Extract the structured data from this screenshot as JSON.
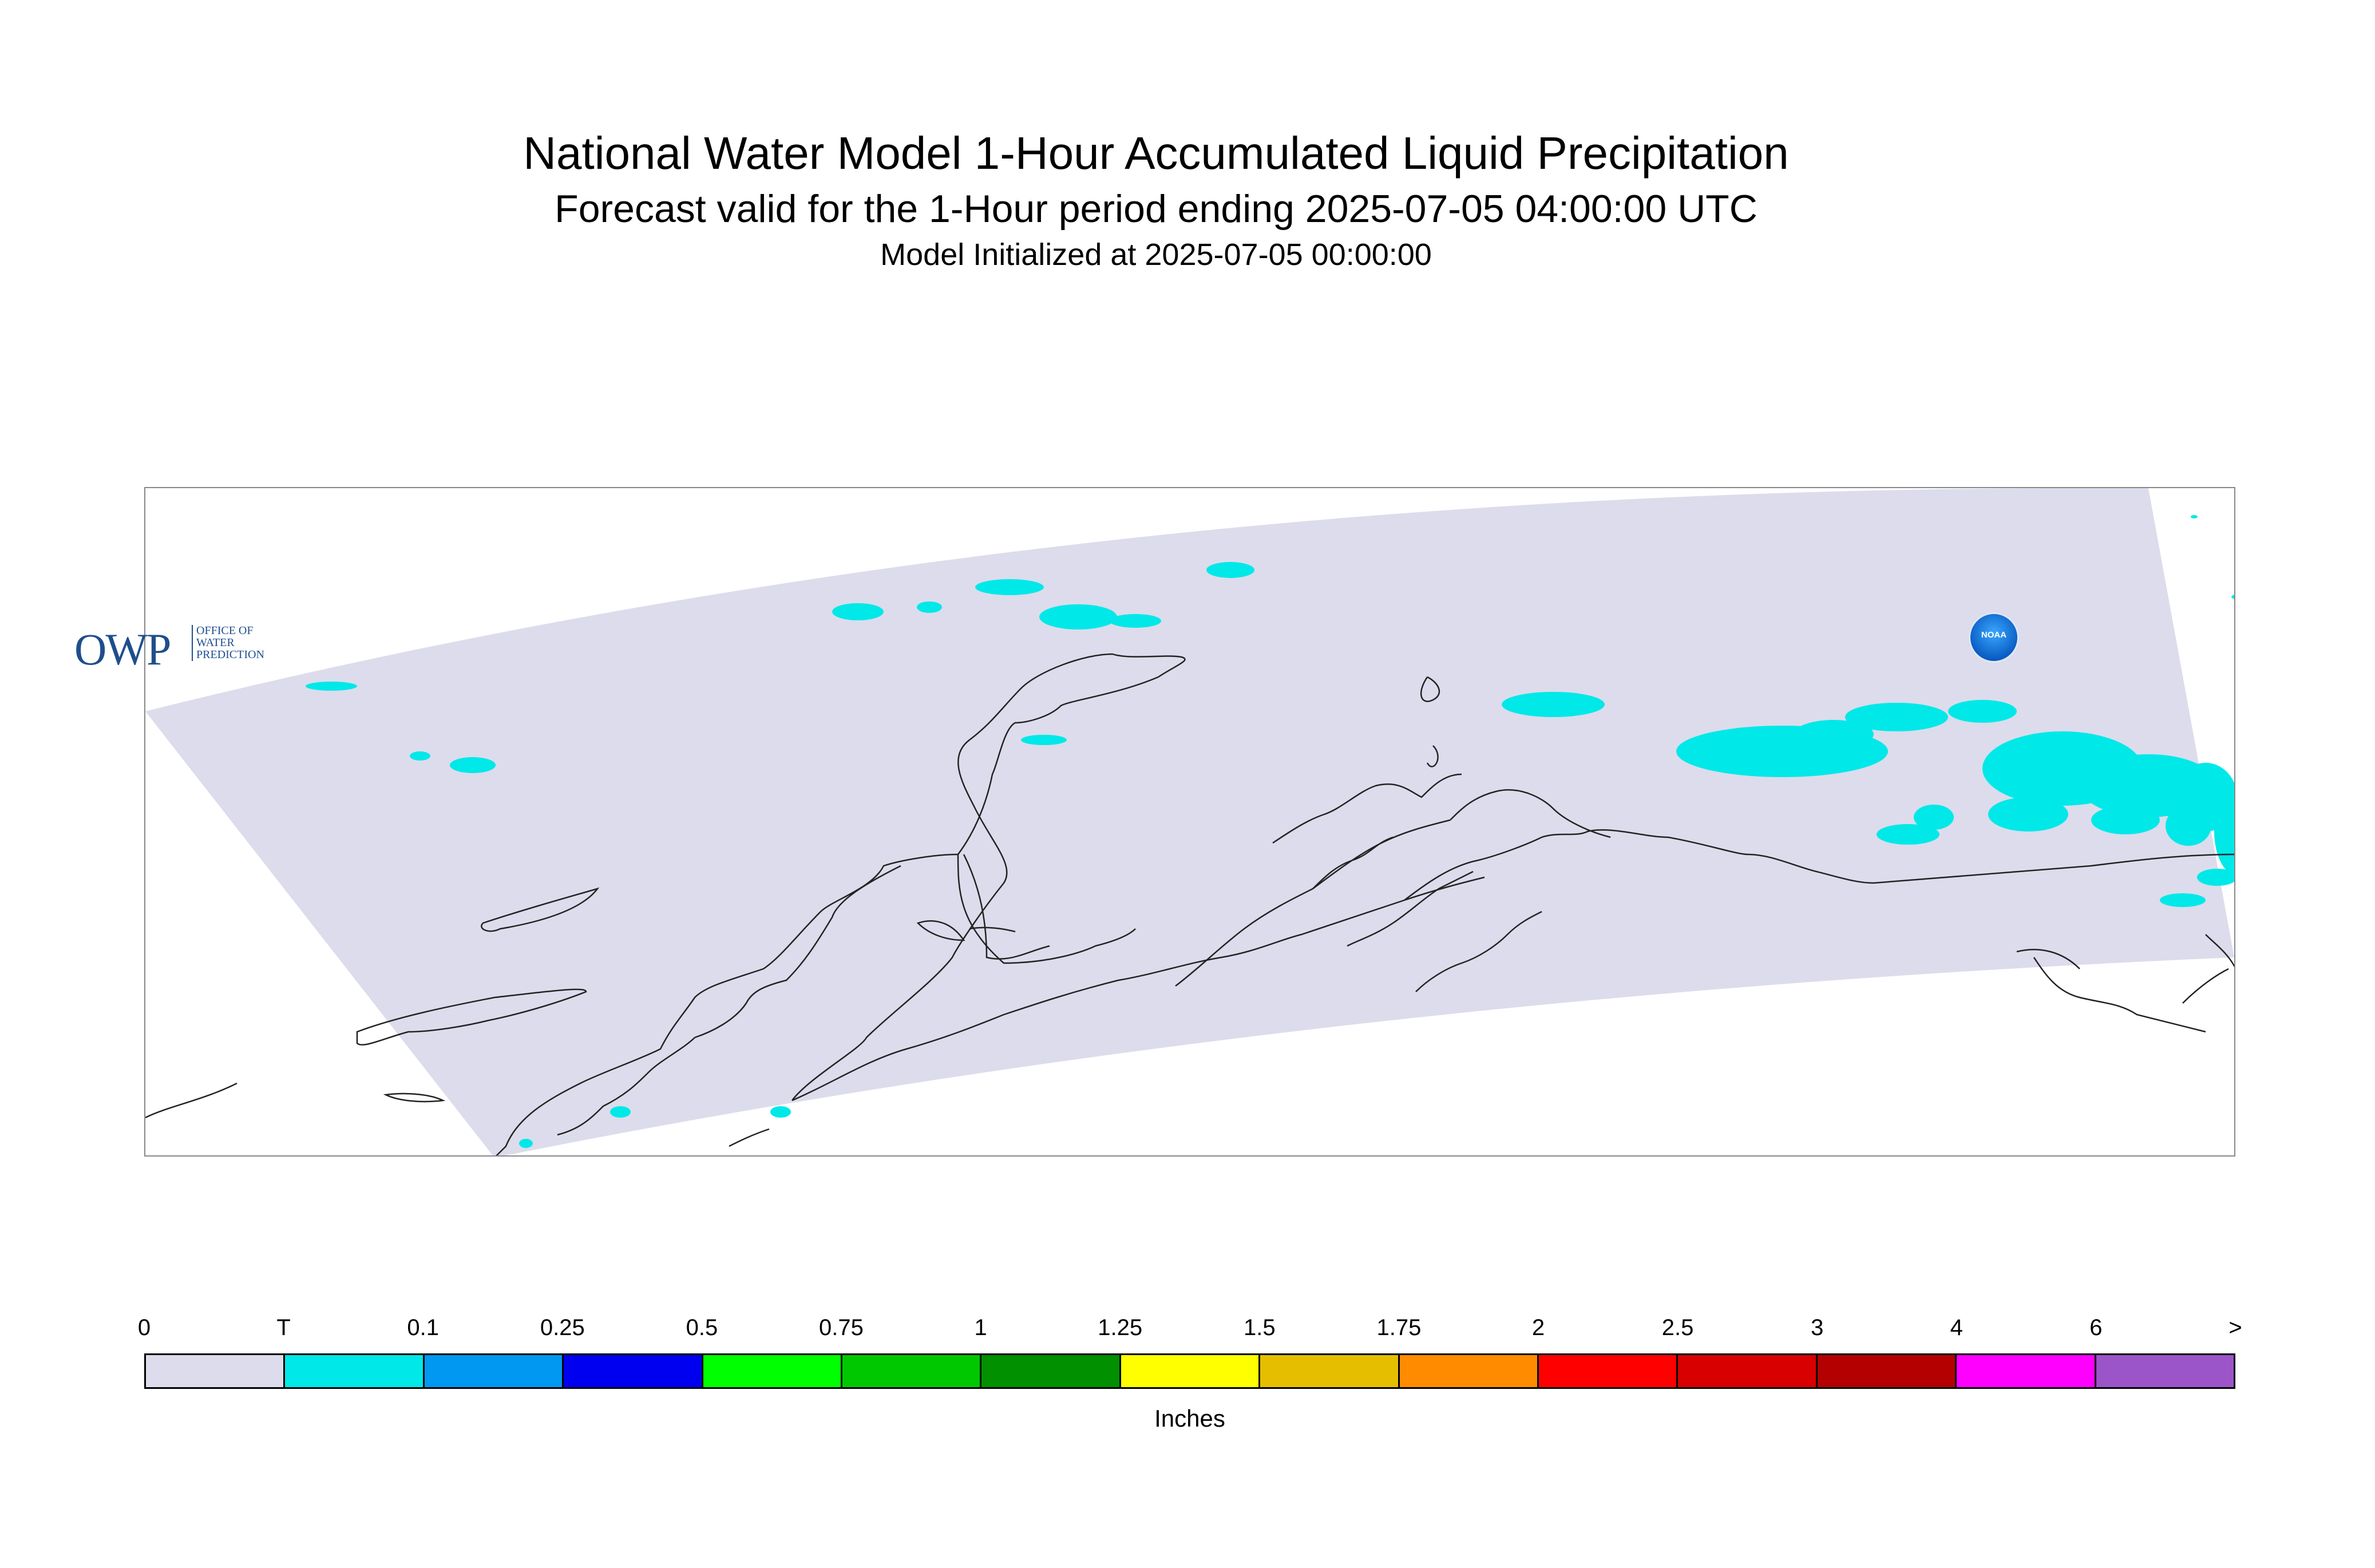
{
  "title": "National Water Model 1-Hour Accumulated Liquid Precipitation",
  "subtitle": "Forecast valid for the 1-Hour period ending 2025-07-05 04:00:00 UTC",
  "init": "Model Initialized at 2025-07-05 00:00:00",
  "logos": {
    "owp_text": "OWP",
    "owp_sub": [
      "OFFICE OF",
      "WATER",
      "PREDICTION"
    ],
    "noaa_text": "NOAA"
  },
  "colors": {
    "domain_fill": "#dcdcec",
    "trace_fill": "#00e8e8",
    "coastline": "#222222"
  },
  "legend": {
    "ticks": [
      "0",
      "T",
      "0.1",
      "0.25",
      "0.5",
      "0.75",
      "1",
      "1.25",
      "1.5",
      "1.75",
      "2",
      "2.5",
      "3",
      "4",
      "6",
      ">"
    ],
    "colors": [
      "#dcdcec",
      "#00e8e8",
      "#0098f0",
      "#0000f0",
      "#00ff00",
      "#00c800",
      "#009000",
      "#ffff00",
      "#e6be00",
      "#ff8c00",
      "#ff0000",
      "#d80000",
      "#b40000",
      "#ff00ff",
      "#9b55c8"
    ],
    "units": "Inches"
  }
}
